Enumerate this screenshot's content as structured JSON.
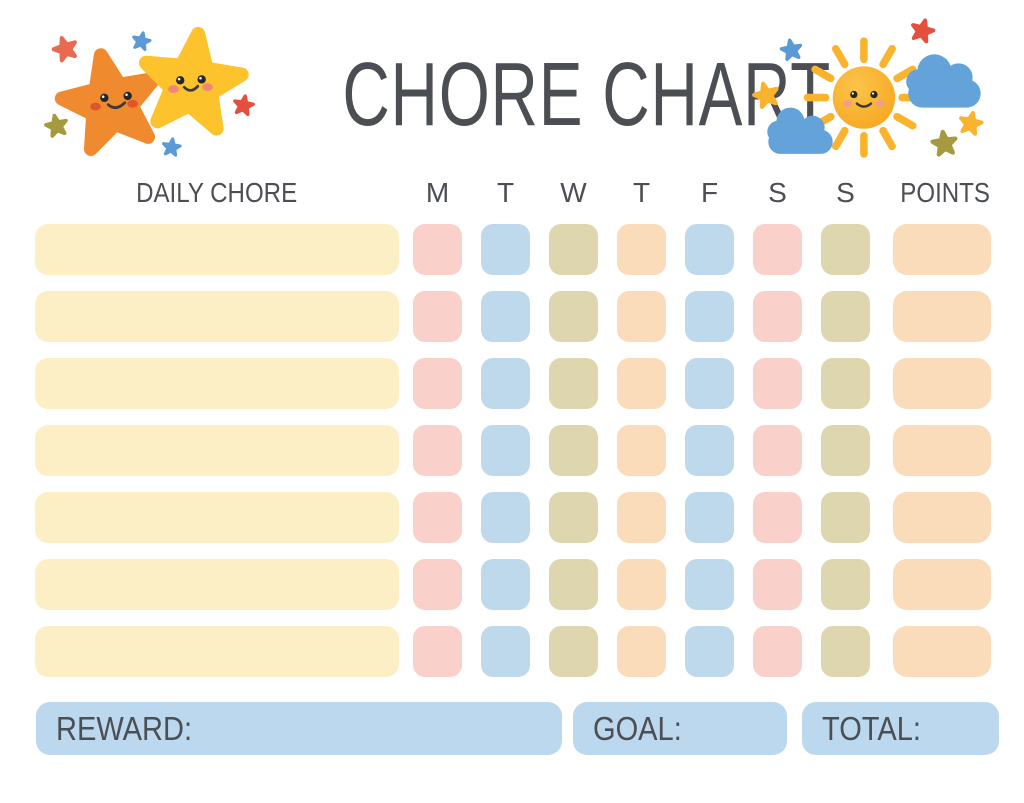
{
  "title": "CHORE CHART",
  "palette": {
    "heading_text": "#4b4e53",
    "chore_cream": "#fdefc5",
    "pink": "#f9d0ca",
    "blue": "#bed8ec",
    "olive": "#ddd6ae",
    "peach": "#fadcba",
    "footer_blue": "#bcd8ee",
    "star_orange": "#f08a2f",
    "star_yellow": "#fcc32d",
    "sun_yellow": "#f6a61f",
    "ray_yellow": "#f9b32c",
    "cloud_blue": "#64a3da",
    "accent_red": "#e4503d",
    "accent_olive": "#a69a3e",
    "accent_blue": "#5b9bd5"
  },
  "table": {
    "chore_header": "DAILY CHORE",
    "day_headers": [
      "M",
      "T",
      "W",
      "T",
      "F",
      "S",
      "S"
    ],
    "points_header": "POINTS",
    "row_count": 7,
    "chore_cell_color": "chore_cream",
    "day_cell_colors": [
      "pink",
      "blue",
      "olive",
      "peach",
      "blue",
      "pink",
      "olive"
    ],
    "points_cell_color": "peach",
    "rows": [
      {
        "chore": "",
        "days": [
          "",
          "",
          "",
          "",
          "",
          "",
          ""
        ],
        "points": ""
      },
      {
        "chore": "",
        "days": [
          "",
          "",
          "",
          "",
          "",
          "",
          ""
        ],
        "points": ""
      },
      {
        "chore": "",
        "days": [
          "",
          "",
          "",
          "",
          "",
          "",
          ""
        ],
        "points": ""
      },
      {
        "chore": "",
        "days": [
          "",
          "",
          "",
          "",
          "",
          "",
          ""
        ],
        "points": ""
      },
      {
        "chore": "",
        "days": [
          "",
          "",
          "",
          "",
          "",
          "",
          ""
        ],
        "points": ""
      },
      {
        "chore": "",
        "days": [
          "",
          "",
          "",
          "",
          "",
          "",
          ""
        ],
        "points": ""
      },
      {
        "chore": "",
        "days": [
          "",
          "",
          "",
          "",
          "",
          "",
          ""
        ],
        "points": ""
      }
    ]
  },
  "footer": {
    "reward_label": "REWARD:",
    "goal_label": "GOAL:",
    "total_label": "TOTAL:"
  },
  "decorations": {
    "left_icon": "smiling-stars-icon",
    "right_icon": "smiling-sun-clouds-icon"
  }
}
